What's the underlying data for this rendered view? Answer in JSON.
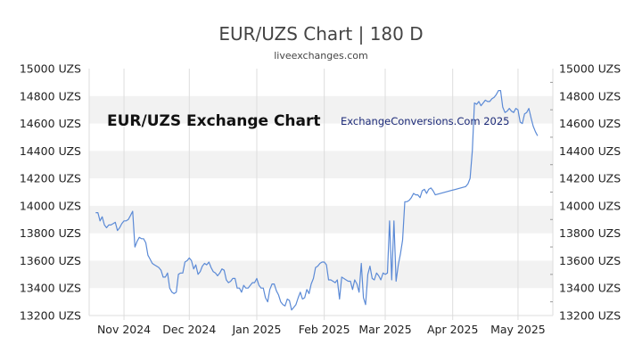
{
  "chart_data": {
    "type": "line",
    "title": "EUR/UZS Chart | 180 D",
    "subtitle": "liveexchanges.com",
    "watermark_left": "EUR/UZS Exchange Chart",
    "watermark_right": "ExchangeConversions.Com 2025",
    "xlabel": "",
    "ylabel": "",
    "ylim": [
      13200,
      15000
    ],
    "y_ticks": [
      13200,
      13400,
      13600,
      13800,
      14000,
      14200,
      14400,
      14600,
      14800,
      15000
    ],
    "y_tick_labels": [
      "13200 UZS",
      "13400 UZS",
      "13600 UZS",
      "13800 UZS",
      "14000 UZS",
      "14200 UZS",
      "14400 UZS",
      "14600 UZS",
      "14800 UZS",
      "15000 UZS"
    ],
    "xlim": [
      "2024-10-16",
      "2025-05-17"
    ],
    "x_ticks": [
      {
        "date": "2024-11-01",
        "label": "Nov 2024"
      },
      {
        "date": "2024-12-01",
        "label": "Dec 2024"
      },
      {
        "date": "2025-01-01",
        "label": "Jan 2025"
      },
      {
        "date": "2025-02-01",
        "label": "Feb 2025"
      },
      {
        "date": "2025-03-01",
        "label": "Mar 2025"
      },
      {
        "date": "2025-04-01",
        "label": "Apr 2025"
      },
      {
        "date": "2025-05-01",
        "label": "May 2025"
      }
    ],
    "grid": "alternating horizontal bands",
    "series": [
      {
        "color": "#5b8ad6",
        "points": [
          [
            "2024-10-19",
            13950
          ],
          [
            "2024-10-20",
            13950
          ],
          [
            "2024-10-21",
            13890
          ],
          [
            "2024-10-22",
            13920
          ],
          [
            "2024-10-23",
            13860
          ],
          [
            "2024-10-24",
            13840
          ],
          [
            "2024-10-25",
            13860
          ],
          [
            "2024-10-26",
            13860
          ],
          [
            "2024-10-27",
            13870
          ],
          [
            "2024-10-28",
            13880
          ],
          [
            "2024-10-29",
            13820
          ],
          [
            "2024-10-30",
            13840
          ],
          [
            "2024-10-31",
            13870
          ],
          [
            "2024-11-01",
            13890
          ],
          [
            "2024-11-02",
            13890
          ],
          [
            "2024-11-03",
            13900
          ],
          [
            "2024-11-04",
            13930
          ],
          [
            "2024-11-05",
            13960
          ],
          [
            "2024-11-06",
            13700
          ],
          [
            "2024-11-07",
            13740
          ],
          [
            "2024-11-08",
            13770
          ],
          [
            "2024-11-09",
            13760
          ],
          [
            "2024-11-10",
            13760
          ],
          [
            "2024-11-11",
            13730
          ],
          [
            "2024-11-12",
            13640
          ],
          [
            "2024-11-13",
            13610
          ],
          [
            "2024-11-14",
            13580
          ],
          [
            "2024-11-15",
            13570
          ],
          [
            "2024-11-16",
            13560
          ],
          [
            "2024-11-17",
            13550
          ],
          [
            "2024-11-18",
            13530
          ],
          [
            "2024-11-19",
            13480
          ],
          [
            "2024-11-20",
            13480
          ],
          [
            "2024-11-21",
            13510
          ],
          [
            "2024-11-22",
            13400
          ],
          [
            "2024-11-23",
            13370
          ],
          [
            "2024-11-24",
            13360
          ],
          [
            "2024-11-25",
            13370
          ],
          [
            "2024-11-26",
            13500
          ],
          [
            "2024-11-27",
            13510
          ],
          [
            "2024-11-28",
            13510
          ],
          [
            "2024-11-29",
            13590
          ],
          [
            "2024-11-30",
            13600
          ],
          [
            "2024-12-01",
            13620
          ],
          [
            "2024-12-02",
            13600
          ],
          [
            "2024-12-03",
            13540
          ],
          [
            "2024-12-04",
            13570
          ],
          [
            "2024-12-05",
            13500
          ],
          [
            "2024-12-06",
            13520
          ],
          [
            "2024-12-07",
            13560
          ],
          [
            "2024-12-08",
            13580
          ],
          [
            "2024-12-09",
            13570
          ],
          [
            "2024-12-10",
            13590
          ],
          [
            "2024-12-11",
            13550
          ],
          [
            "2024-12-12",
            13520
          ],
          [
            "2024-12-13",
            13510
          ],
          [
            "2024-12-14",
            13490
          ],
          [
            "2024-12-15",
            13510
          ],
          [
            "2024-12-16",
            13540
          ],
          [
            "2024-12-17",
            13530
          ],
          [
            "2024-12-18",
            13460
          ],
          [
            "2024-12-19",
            13440
          ],
          [
            "2024-12-20",
            13450
          ],
          [
            "2024-12-21",
            13470
          ],
          [
            "2024-12-22",
            13470
          ],
          [
            "2024-12-23",
            13400
          ],
          [
            "2024-12-24",
            13400
          ],
          [
            "2024-12-25",
            13370
          ],
          [
            "2024-12-26",
            13420
          ],
          [
            "2024-12-27",
            13400
          ],
          [
            "2024-12-28",
            13400
          ],
          [
            "2024-12-29",
            13420
          ],
          [
            "2024-12-30",
            13440
          ],
          [
            "2024-12-31",
            13440
          ],
          [
            "2025-01-01",
            13470
          ],
          [
            "2025-01-02",
            13420
          ],
          [
            "2025-01-03",
            13400
          ],
          [
            "2025-01-04",
            13400
          ],
          [
            "2025-01-05",
            13330
          ],
          [
            "2025-01-06",
            13300
          ],
          [
            "2025-01-07",
            13390
          ],
          [
            "2025-01-08",
            13430
          ],
          [
            "2025-01-09",
            13430
          ],
          [
            "2025-01-10",
            13380
          ],
          [
            "2025-01-11",
            13350
          ],
          [
            "2025-01-12",
            13300
          ],
          [
            "2025-01-13",
            13280
          ],
          [
            "2025-01-14",
            13270
          ],
          [
            "2025-01-15",
            13320
          ],
          [
            "2025-01-16",
            13310
          ],
          [
            "2025-01-17",
            13240
          ],
          [
            "2025-01-18",
            13260
          ],
          [
            "2025-01-19",
            13280
          ],
          [
            "2025-01-20",
            13330
          ],
          [
            "2025-01-21",
            13370
          ],
          [
            "2025-01-22",
            13320
          ],
          [
            "2025-01-23",
            13330
          ],
          [
            "2025-01-24",
            13390
          ],
          [
            "2025-01-25",
            13360
          ],
          [
            "2025-01-26",
            13430
          ],
          [
            "2025-01-27",
            13470
          ],
          [
            "2025-01-28",
            13550
          ],
          [
            "2025-01-29",
            13560
          ],
          [
            "2025-01-30",
            13580
          ],
          [
            "2025-01-31",
            13590
          ],
          [
            "2025-02-01",
            13590
          ],
          [
            "2025-02-02",
            13570
          ],
          [
            "2025-02-03",
            13460
          ],
          [
            "2025-02-04",
            13460
          ],
          [
            "2025-02-05",
            13450
          ],
          [
            "2025-02-06",
            13440
          ],
          [
            "2025-02-07",
            13460
          ],
          [
            "2025-02-08",
            13320
          ],
          [
            "2025-02-09",
            13480
          ],
          [
            "2025-02-10",
            13470
          ],
          [
            "2025-02-11",
            13460
          ],
          [
            "2025-02-12",
            13450
          ],
          [
            "2025-02-13",
            13450
          ],
          [
            "2025-02-14",
            13390
          ],
          [
            "2025-02-15",
            13460
          ],
          [
            "2025-02-16",
            13430
          ],
          [
            "2025-02-17",
            13370
          ],
          [
            "2025-02-18",
            13580
          ],
          [
            "2025-02-19",
            13330
          ],
          [
            "2025-02-20",
            13280
          ],
          [
            "2025-02-21",
            13500
          ],
          [
            "2025-02-22",
            13560
          ],
          [
            "2025-02-23",
            13470
          ],
          [
            "2025-02-24",
            13460
          ],
          [
            "2025-02-25",
            13510
          ],
          [
            "2025-02-26",
            13490
          ],
          [
            "2025-02-27",
            13460
          ],
          [
            "2025-02-28",
            13510
          ],
          [
            "2025-03-01",
            13500
          ],
          [
            "2025-03-02",
            13510
          ],
          [
            "2025-03-03",
            13890
          ],
          [
            "2025-03-04",
            13460
          ],
          [
            "2025-03-05",
            13890
          ],
          [
            "2025-03-06",
            13450
          ],
          [
            "2025-03-07",
            13570
          ],
          [
            "2025-03-08",
            13650
          ],
          [
            "2025-03-09",
            13750
          ],
          [
            "2025-03-10",
            14030
          ],
          [
            "2025-03-11",
            14030
          ],
          [
            "2025-03-12",
            14040
          ],
          [
            "2025-03-13",
            14060
          ],
          [
            "2025-03-14",
            14090
          ],
          [
            "2025-03-15",
            14080
          ],
          [
            "2025-03-16",
            14080
          ],
          [
            "2025-03-17",
            14060
          ],
          [
            "2025-03-18",
            14110
          ],
          [
            "2025-03-19",
            14120
          ],
          [
            "2025-03-20",
            14090
          ],
          [
            "2025-03-21",
            14120
          ],
          [
            "2025-03-22",
            14130
          ],
          [
            "2025-03-23",
            14110
          ],
          [
            "2025-03-24",
            14080
          ],
          [
            "2025-04-07",
            14140
          ],
          [
            "2025-04-08",
            14160
          ],
          [
            "2025-04-09",
            14200
          ],
          [
            "2025-04-10",
            14400
          ],
          [
            "2025-04-11",
            14750
          ],
          [
            "2025-04-12",
            14740
          ],
          [
            "2025-04-13",
            14760
          ],
          [
            "2025-04-14",
            14730
          ],
          [
            "2025-04-15",
            14750
          ],
          [
            "2025-04-16",
            14770
          ],
          [
            "2025-04-17",
            14760
          ],
          [
            "2025-04-18",
            14760
          ],
          [
            "2025-04-19",
            14780
          ],
          [
            "2025-04-20",
            14790
          ],
          [
            "2025-04-21",
            14810
          ],
          [
            "2025-04-22",
            14840
          ],
          [
            "2025-04-23",
            14840
          ],
          [
            "2025-04-24",
            14720
          ],
          [
            "2025-04-25",
            14680
          ],
          [
            "2025-04-26",
            14690
          ],
          [
            "2025-04-27",
            14710
          ],
          [
            "2025-04-28",
            14690
          ],
          [
            "2025-04-29",
            14680
          ],
          [
            "2025-04-30",
            14710
          ],
          [
            "2025-05-01",
            14700
          ],
          [
            "2025-05-02",
            14610
          ],
          [
            "2025-05-03",
            14600
          ],
          [
            "2025-05-04",
            14670
          ],
          [
            "2025-05-05",
            14680
          ],
          [
            "2025-05-06",
            14710
          ],
          [
            "2025-05-07",
            14640
          ],
          [
            "2025-05-08",
            14580
          ],
          [
            "2025-05-09",
            14540
          ],
          [
            "2025-05-10",
            14510
          ]
        ]
      }
    ]
  }
}
